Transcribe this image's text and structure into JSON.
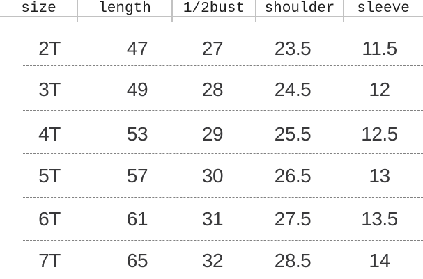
{
  "chart_data": {
    "type": "table",
    "columns": [
      "size",
      "length",
      "1/2bust",
      "shoulder",
      "sleeve"
    ],
    "rows": [
      [
        "2T",
        "47",
        "27",
        "23.5",
        "11.5"
      ],
      [
        "3T",
        "49",
        "28",
        "24.5",
        "12"
      ],
      [
        "4T",
        "53",
        "29",
        "25.5",
        "12.5"
      ],
      [
        "5T",
        "57",
        "30",
        "26.5",
        "13"
      ],
      [
        "6T",
        "61",
        "31",
        "27.5",
        "13.5"
      ],
      [
        "7T",
        "65",
        "32",
        "28.5",
        "14"
      ]
    ]
  },
  "colors": {
    "background": "#ffffff",
    "header_text": "#1e1e1e",
    "data_text": "#39393b",
    "solid_line": "#c2c2c2",
    "dashed_line": "#828282"
  }
}
